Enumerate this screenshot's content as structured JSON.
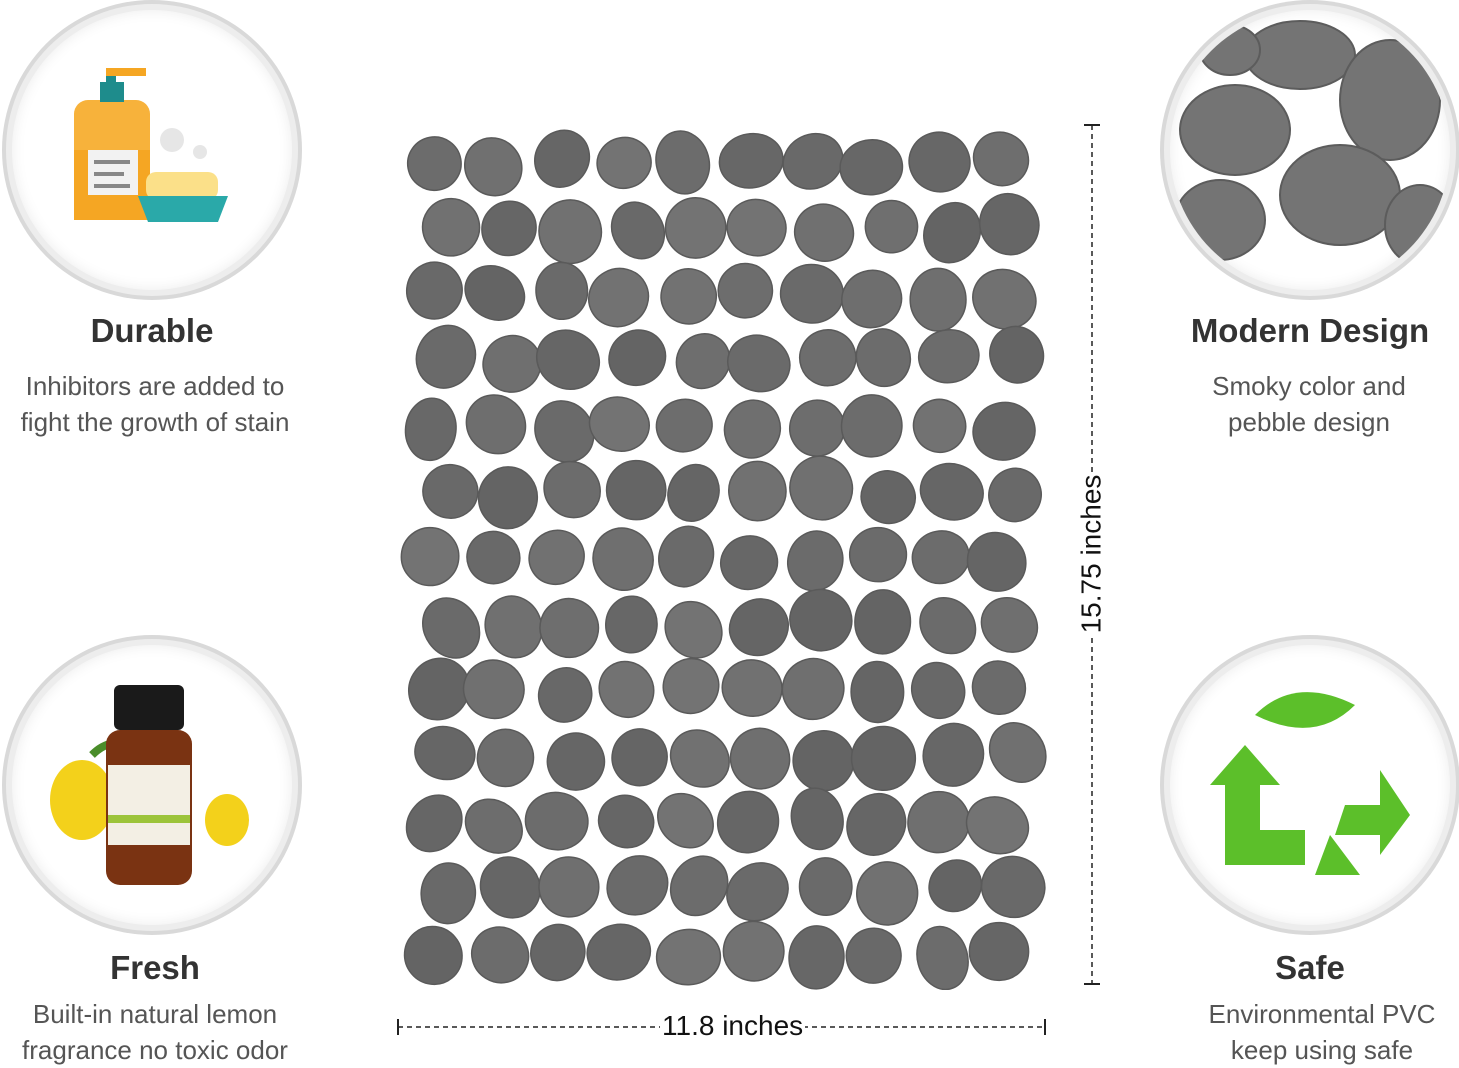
{
  "features": [
    {
      "title": "Durable",
      "lines": [
        "Inhibitors are added to",
        "fight the growth of stain"
      ],
      "icon": "soap-bottle-icon"
    },
    {
      "title": "Modern Design",
      "lines": [
        "Smoky color and",
        "pebble design"
      ],
      "icon": "pebble-closeup-icon"
    },
    {
      "title": "Fresh",
      "lines": [
        "Built-in natural lemon",
        "fragrance no toxic odor"
      ],
      "icon": "lemon-essential-oil-icon"
    },
    {
      "title": "Safe",
      "lines": [
        "Environmental PVC",
        "keep using safe"
      ],
      "icon": "recycle-leaf-icon"
    }
  ],
  "dimensions": {
    "width": "11.8 inches",
    "height": "15.75 inches"
  },
  "colors": {
    "pebble": "#6a6a6a",
    "recycle_green": "#5cbf2a",
    "title": "#333333",
    "text": "#555555"
  }
}
